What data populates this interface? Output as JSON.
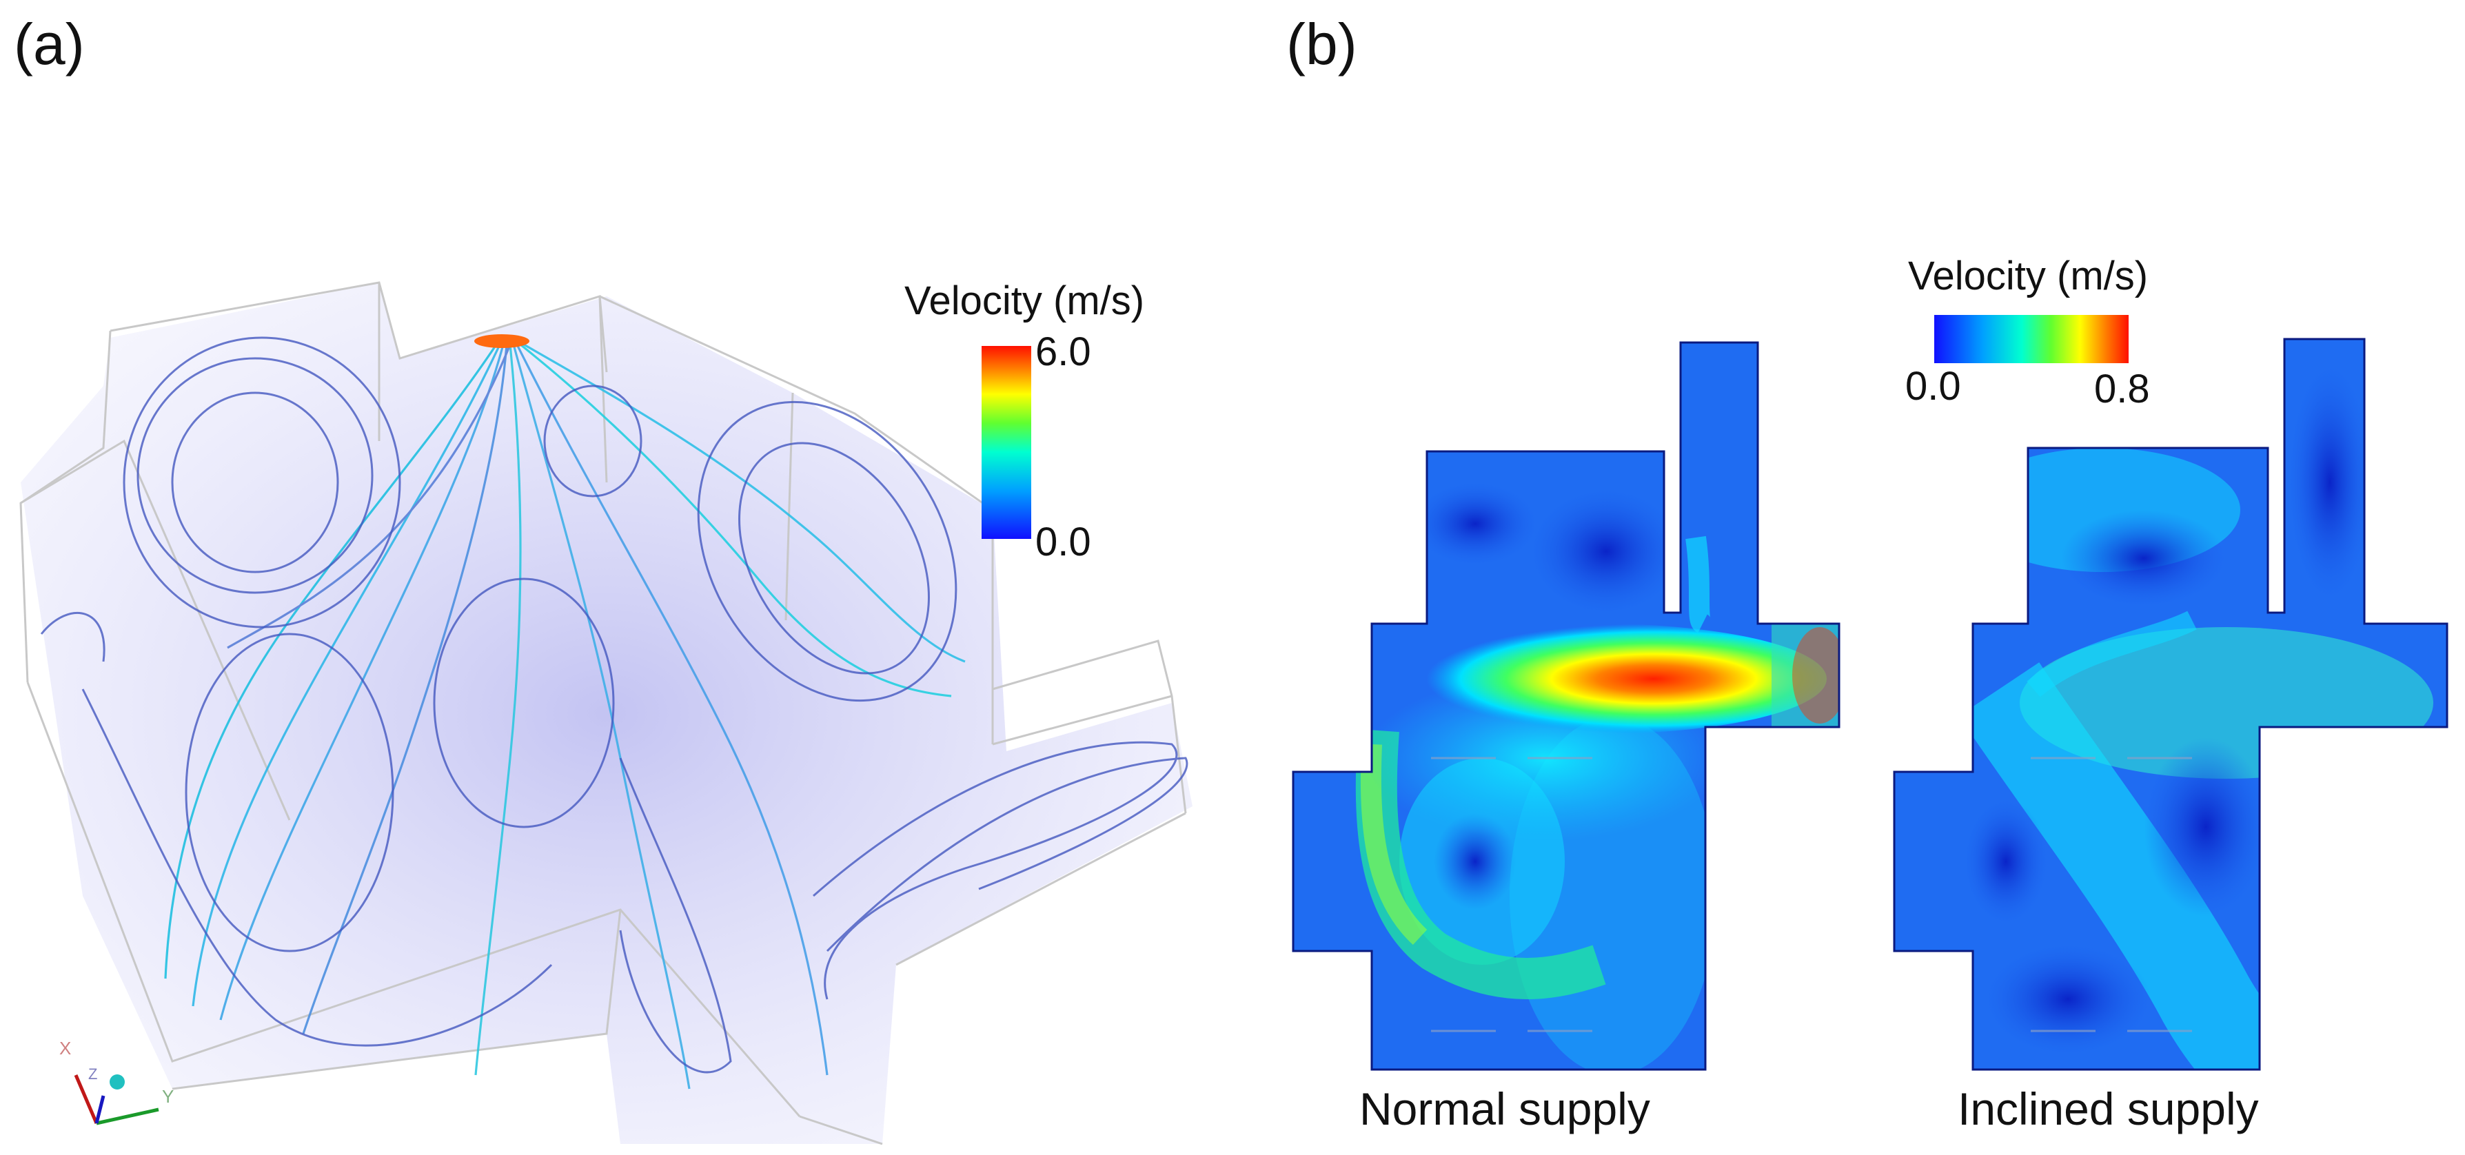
{
  "panel_a": {
    "label": "(a)",
    "legend": {
      "title": "Velocity (m/s)",
      "max_label": "6.0",
      "min_label": "0.0"
    },
    "axis_triad": {
      "x": "X",
      "y": "Y",
      "z": "Z"
    }
  },
  "panel_b": {
    "label": "(b)",
    "legend": {
      "title": "Velocity (m/s)",
      "min_label": "0.0",
      "max_label": "0.8"
    },
    "captions": [
      "Normal supply",
      "Inclined supply"
    ]
  },
  "colors": {
    "jet_low": "#1a1aff",
    "jet_mid": "#00ffff",
    "jet_high": "#ff2000",
    "streamline": "#3d4fc0",
    "fog": "#c9c9f2",
    "field_base": "#1e6bf0"
  }
}
